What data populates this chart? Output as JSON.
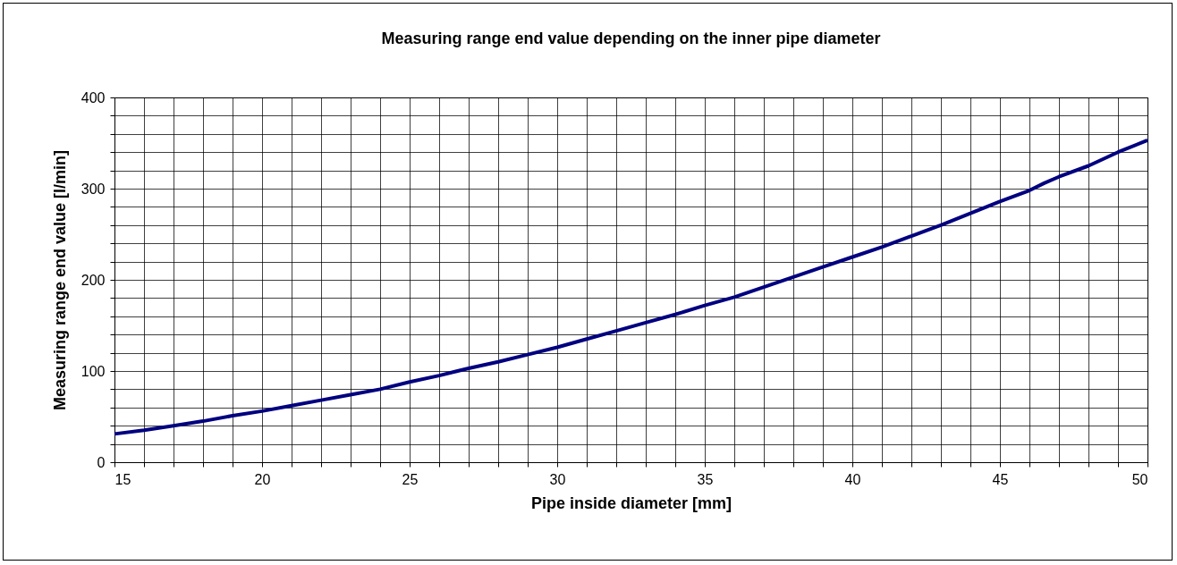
{
  "chart_data": {
    "type": "line",
    "title": "Measuring range end value depending on the inner pipe diameter",
    "xlabel": "Pipe inside diameter [mm]",
    "ylabel": "Measuring range end value [l/min]",
    "x": [
      15,
      16,
      17,
      18,
      19,
      20,
      21,
      22,
      23,
      24,
      25,
      26,
      27,
      28,
      29,
      30,
      31,
      32,
      33,
      34,
      35,
      36,
      37,
      38,
      39,
      40,
      41,
      42,
      43,
      44,
      45,
      46,
      46.5,
      47,
      48,
      49,
      50
    ],
    "series": [
      {
        "color": "#000080",
        "values": [
          31,
          35,
          40,
          45,
          51,
          56,
          62,
          68,
          74,
          80,
          88,
          95,
          103,
          110,
          118,
          126,
          135,
          144,
          153,
          162,
          172,
          181,
          192,
          203,
          214,
          225,
          236,
          248,
          260,
          273,
          286,
          298,
          306,
          313,
          325,
          340,
          353
        ]
      }
    ],
    "xlim": [
      15,
      50
    ],
    "xticks": [
      15,
      {
        "value": 16,
        "label": null
      },
      {
        "value": 17,
        "label": null
      },
      {
        "value": 18,
        "label": null
      },
      {
        "value": 19,
        "label": null
      },
      20,
      {
        "value": 21,
        "label": null
      },
      {
        "value": 22,
        "label": null
      },
      {
        "value": 23,
        "label": null
      },
      {
        "value": 24,
        "label": null
      },
      25,
      {
        "value": 26,
        "label": null
      },
      {
        "value": 27,
        "label": null
      },
      {
        "value": 28,
        "label": null
      },
      {
        "value": 29,
        "label": null
      },
      30,
      {
        "value": 31,
        "label": null
      },
      {
        "value": 32,
        "label": null
      },
      {
        "value": 33,
        "label": null
      },
      {
        "value": 34,
        "label": null
      },
      35,
      {
        "value": 36,
        "label": null
      },
      {
        "value": 37,
        "label": null
      },
      {
        "value": 38,
        "label": null
      },
      {
        "value": 39,
        "label": null
      },
      40,
      {
        "value": 41,
        "label": null
      },
      {
        "value": 42,
        "label": null
      },
      {
        "value": 43,
        "label": null
      },
      {
        "value": 44,
        "label": null
      },
      45,
      {
        "value": 46,
        "label": null
      },
      {
        "value": 47,
        "label": null
      },
      {
        "value": 48,
        "label": null
      },
      {
        "value": 49,
        "label": null
      },
      50
    ],
    "ylim": [
      0,
      400
    ],
    "yticks": [
      0,
      {
        "value": 20,
        "label": null
      },
      {
        "value": 40,
        "label": null
      },
      {
        "value": 60,
        "label": null
      },
      {
        "value": 80,
        "label": null
      },
      100,
      {
        "value": 120,
        "label": null
      },
      {
        "value": 140,
        "label": null
      },
      {
        "value": 160,
        "label": null
      },
      {
        "value": 180,
        "label": null
      },
      200,
      {
        "value": 220,
        "label": null
      },
      {
        "value": 240,
        "label": null
      },
      {
        "value": 260,
        "label": null
      },
      {
        "value": 280,
        "label": null
      },
      300,
      {
        "value": 320,
        "label": null
      },
      {
        "value": 340,
        "label": null
      },
      {
        "value": 360,
        "label": null
      },
      {
        "value": 380,
        "label": null
      },
      400
    ],
    "grid": true,
    "marker": "none",
    "line_style": "solid"
  }
}
